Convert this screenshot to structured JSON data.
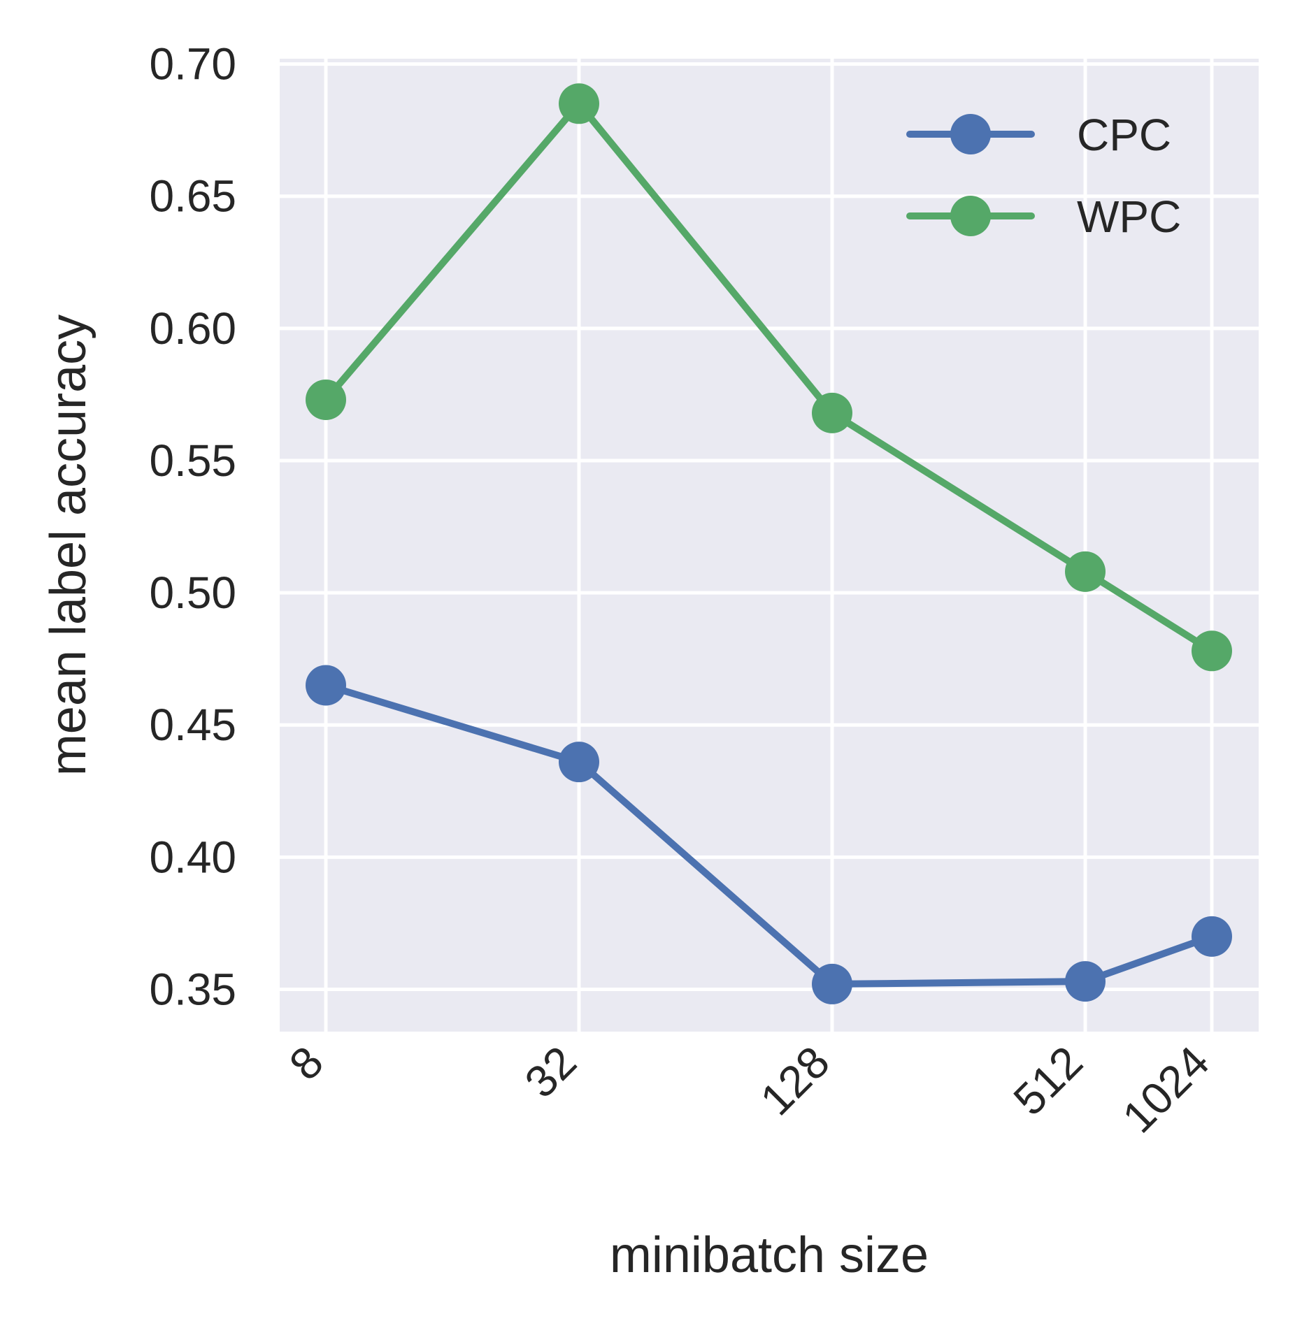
{
  "chart_data": {
    "type": "line",
    "x": [
      8,
      32,
      128,
      512,
      1024
    ],
    "x_tick_labels": [
      "8",
      "32",
      "128",
      "512",
      "1024"
    ],
    "x_scale": "log2",
    "xlabel": "minibatch size",
    "ylabel": "mean label accuracy",
    "ylim": [
      0.334,
      0.702
    ],
    "y_ticks": [
      0.35,
      0.4,
      0.45,
      0.5,
      0.55,
      0.6,
      0.65,
      0.7
    ],
    "y_tick_labels": [
      "0.35",
      "0.40",
      "0.45",
      "0.50",
      "0.55",
      "0.60",
      "0.65",
      "0.70"
    ],
    "grid": true,
    "legend_position": "top-right",
    "background_color": "#eaeaf2",
    "grid_color": "#ffffff",
    "series": [
      {
        "name": "CPC",
        "color": "#4c72b0",
        "values": [
          0.465,
          0.436,
          0.352,
          0.353,
          0.37
        ]
      },
      {
        "name": "WPC",
        "color": "#55a868",
        "values": [
          0.573,
          0.685,
          0.568,
          0.508,
          0.478
        ]
      }
    ]
  }
}
